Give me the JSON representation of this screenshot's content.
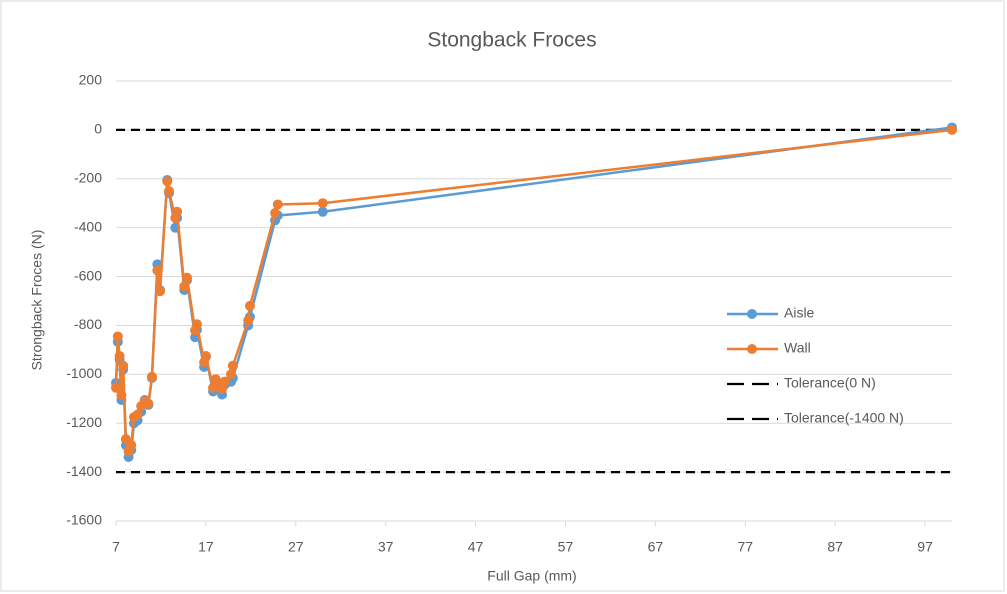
{
  "chart_data": {
    "type": "line",
    "title": "Stongback Froces",
    "x_label": "Full Gap (mm)",
    "y_label": "Strongback Froces (N)",
    "x": [
      7,
      7.2,
      7.4,
      7.6,
      7.8,
      8.1,
      8.4,
      8.7,
      9.0,
      9.4,
      9.8,
      10.2,
      10.6,
      11.0,
      11.6,
      11.9,
      12.7,
      12.9,
      13.6,
      13.8,
      14.6,
      14.9,
      15.8,
      16.0,
      16.8,
      17.0,
      17.8,
      18.1,
      18.8,
      19.1,
      19.8,
      20.0,
      21.7,
      21.9,
      24.7,
      25.0,
      30.0,
      100
    ],
    "series": [
      {
        "name": "Aisle",
        "color": "#5b9bd5",
        "values": [
          -1035,
          -867,
          -940,
          -1105,
          -980,
          -1290,
          -1338,
          -1310,
          -1200,
          -1188,
          -1153,
          -1105,
          -1125,
          -1015,
          -550,
          -655,
          -205,
          -258,
          -400,
          -360,
          -655,
          -615,
          -848,
          -818,
          -970,
          -928,
          -1070,
          -1042,
          -1083,
          -1042,
          -1030,
          -1015,
          -800,
          -765,
          -370,
          -350,
          -335,
          10
        ]
      },
      {
        "name": "Wall",
        "color": "#ed7d31",
        "values": [
          -1055,
          -845,
          -925,
          -1085,
          -965,
          -1265,
          -1315,
          -1290,
          -1175,
          -1165,
          -1130,
          -1110,
          -1120,
          -1010,
          -575,
          -660,
          -210,
          -250,
          -360,
          -335,
          -640,
          -605,
          -820,
          -795,
          -950,
          -925,
          -1055,
          -1020,
          -1060,
          -1030,
          -1000,
          -965,
          -780,
          -720,
          -340,
          -305,
          -300,
          0
        ]
      }
    ],
    "reference_lines": [
      {
        "name": "Tolerance(0 N)",
        "value": 0,
        "color": "#000000"
      },
      {
        "name": "Tolerance(-1400 N)",
        "value": -1400,
        "color": "#000000"
      }
    ],
    "xlim": [
      7,
      100
    ],
    "xticks": [
      7,
      17,
      27,
      37,
      47,
      57,
      67,
      77,
      87,
      97
    ],
    "ylim": [
      -1600,
      200
    ],
    "yticks": [
      200,
      0,
      -200,
      -400,
      -600,
      -800,
      -1000,
      -1200,
      -1400,
      -1600
    ],
    "grid": true,
    "legend": "right"
  }
}
